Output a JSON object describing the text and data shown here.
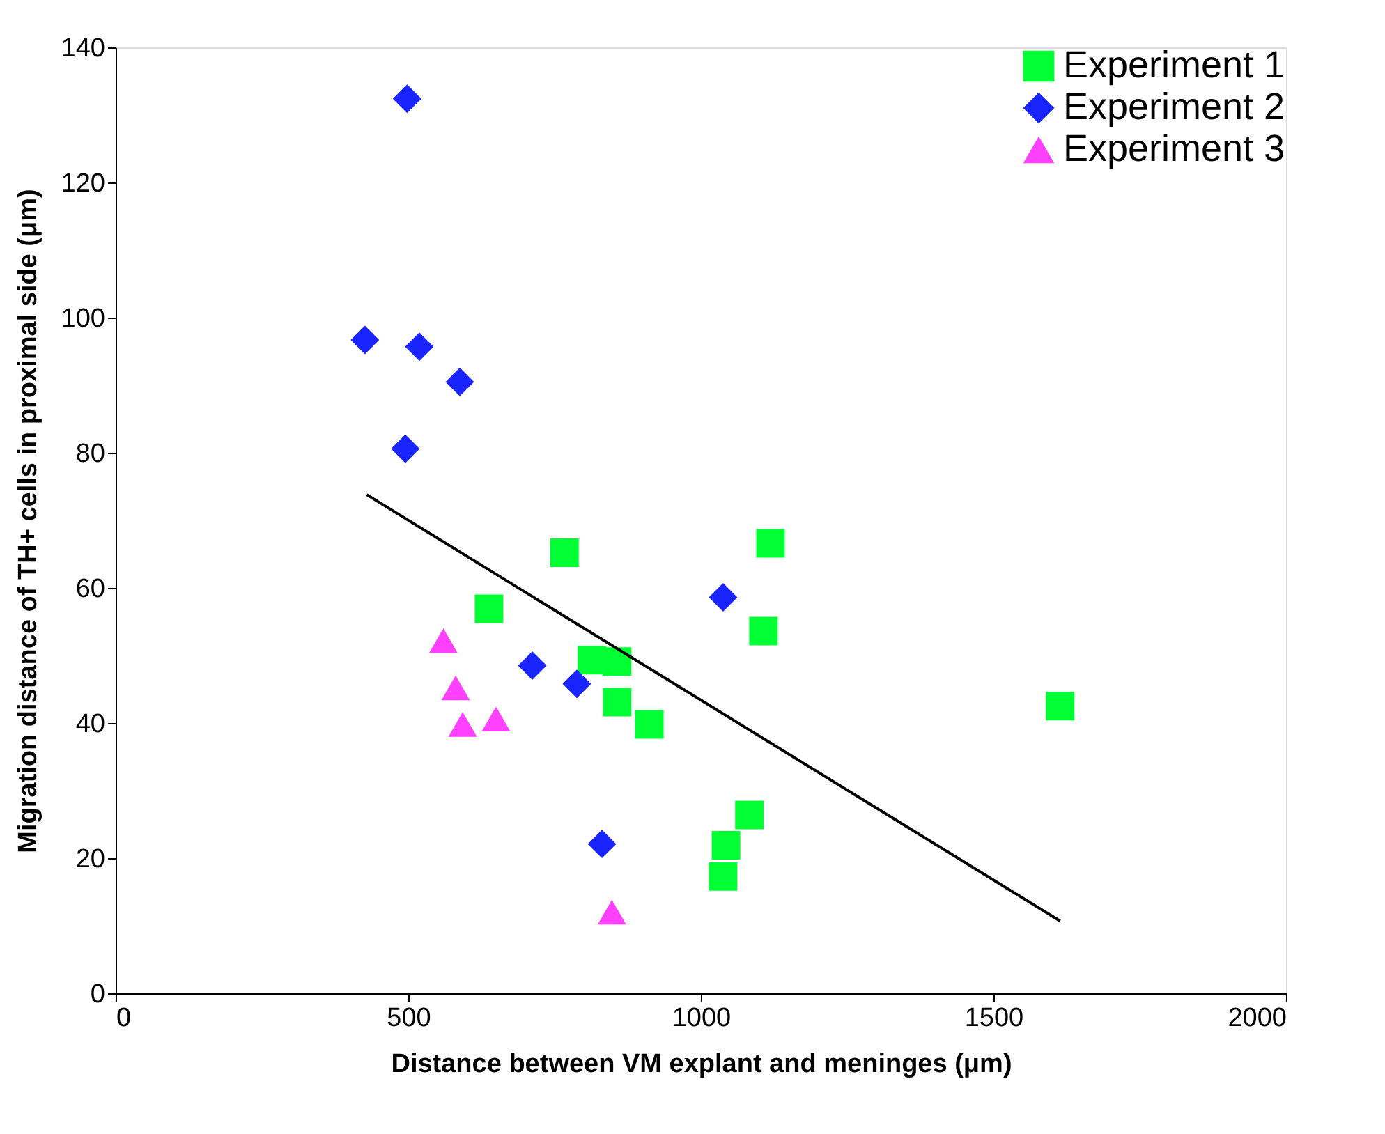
{
  "chart_data": {
    "type": "scatter",
    "xlabel": "Distance between VM explant and meninges (μm)",
    "ylabel": "Migration distance of TH+ cells in proximal side (μm)",
    "xlim": [
      0,
      2000
    ],
    "xticks": [
      0,
      500,
      1000,
      1500,
      2000
    ],
    "ylim": [
      0,
      140
    ],
    "yticks": [
      0,
      20,
      40,
      60,
      80,
      100,
      120,
      140
    ],
    "grid": false,
    "legend": "top right",
    "series": [
      {
        "name": "Experiment 1",
        "color": "#00ff33",
        "marker": "square",
        "x": [
          767,
          638,
          1119,
          1107,
          814,
          857,
          857,
          912,
          1614,
          1083,
          1043,
          1038
        ],
        "values": [
          65.2,
          56.9,
          66.6,
          53.6,
          49.3,
          49.1,
          43.1,
          39.8,
          42.5,
          26.4,
          21.9,
          17.3
        ]
      },
      {
        "name": "Experiment 2",
        "color": "#1a24ff",
        "marker": "diamond",
        "x": [
          498,
          426,
          519,
          588,
          495,
          1038,
          712,
          788,
          831
        ],
        "values": [
          132.4,
          96.7,
          95.7,
          90.5,
          80.6,
          58.6,
          48.5,
          45.8,
          22.1
        ]
      },
      {
        "name": "Experiment 3",
        "color": "#ff40ff",
        "marker": "triangle",
        "x": [
          560,
          581,
          593,
          650,
          848
        ],
        "values": [
          52.2,
          45.2,
          39.8,
          40.6,
          12.0
        ]
      },
      {
        "type": "line",
        "color": "#000000",
        "marker": "none",
        "line_style": "solid",
        "x": [
          429,
          1614
        ],
        "values": [
          73.8,
          10.7
        ]
      }
    ]
  }
}
